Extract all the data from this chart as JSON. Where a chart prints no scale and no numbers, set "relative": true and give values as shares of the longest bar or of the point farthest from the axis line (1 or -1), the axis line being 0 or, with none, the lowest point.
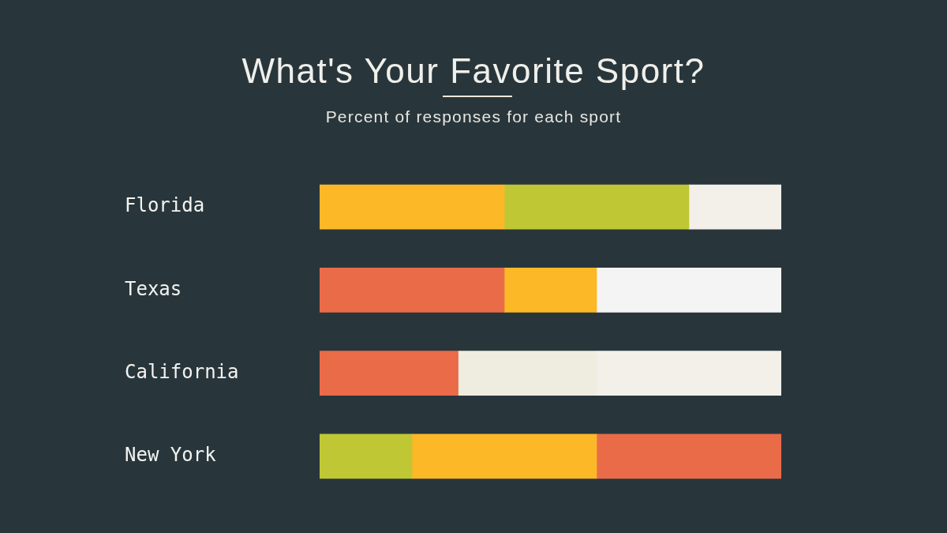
{
  "chart_data": {
    "type": "bar",
    "title": "What's Your Favorite Sport?",
    "subtitle": "Percent of responses for each sport",
    "orientation": "horizontal",
    "stacked": true,
    "relative": true,
    "tick_labels": "y",
    "categories": [
      "Florida",
      "Texas",
      "California",
      "New York"
    ],
    "series": [
      {
        "colors": [
          "#fdb827",
          "#ea6b48",
          "#ea6b48",
          "#bfc834"
        ],
        "values": [
          0.4,
          0.4,
          0.3,
          0.2
        ]
      },
      {
        "colors": [
          "#bfc834",
          "#fdb827",
          "#efece0",
          "#fdb827"
        ],
        "values": [
          0.4,
          0.2,
          0.3,
          0.4
        ]
      },
      {
        "colors": [
          "#f3f0ea",
          "#f4f4f4",
          "#f3f0ea",
          "#ea6b48"
        ],
        "values": [
          0.2,
          0.4,
          0.4,
          0.4
        ]
      }
    ]
  }
}
